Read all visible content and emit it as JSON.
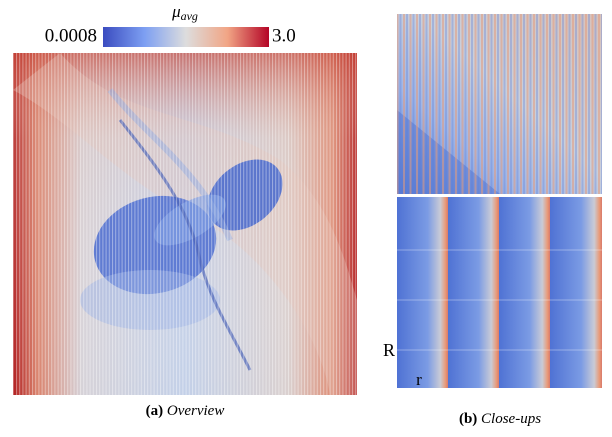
{
  "colorbar": {
    "symbol": "μ",
    "subscript": "avg",
    "min_label": "0.0008",
    "max_label": "3.0"
  },
  "panels": [
    {
      "tag": "(a)",
      "caption": "Overview"
    },
    {
      "tag": "(b)",
      "caption": "Close-ups",
      "labels": [
        "R",
        "r"
      ]
    }
  ]
}
